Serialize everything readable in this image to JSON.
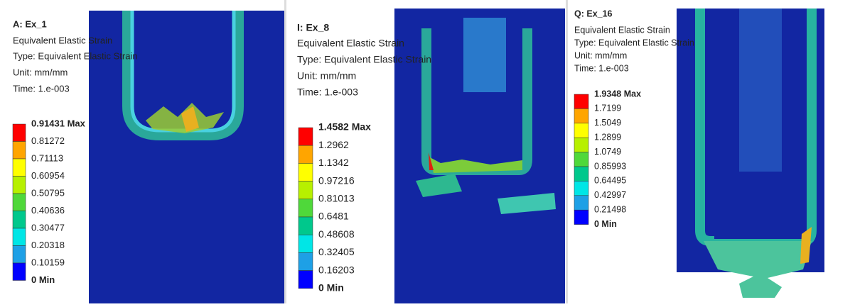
{
  "panels": [
    {
      "title": "A: Ex_1",
      "result": "Equivalent Elastic Strain",
      "type": "Type: Equivalent Elastic Strain",
      "unit": "Unit: mm/mm",
      "time": "Time: 1.e-003",
      "legend": [
        "0.91431 Max",
        "0.81272",
        "0.71113",
        "0.60954",
        "0.50795",
        "0.40636",
        "0.30477",
        "0.20318",
        "0.10159",
        "0 Min"
      ]
    },
    {
      "title": "I: Ex_8",
      "result": "Equivalent Elastic Strain",
      "type": "Type: Equivalent Elastic Strain",
      "unit": "Unit: mm/mm",
      "time": "Time: 1.e-003",
      "legend": [
        "1.4582 Max",
        "1.2962",
        "1.1342",
        "0.97216",
        "0.81013",
        "0.6481",
        "0.48608",
        "0.32405",
        "0.16203",
        "0 Min"
      ]
    },
    {
      "title": "Q: Ex_16",
      "result": "Equivalent Elastic Strain",
      "type": "Type: Equivalent Elastic Strain",
      "unit": "Unit: mm/mm",
      "time": "Time: 1.e-003",
      "legend": [
        "1.9348 Max",
        "1.7199",
        "1.5049",
        "1.2899",
        "1.0749",
        "0.85993",
        "0.64495",
        "0.42997",
        "0.21498",
        "0 Min"
      ]
    }
  ]
}
